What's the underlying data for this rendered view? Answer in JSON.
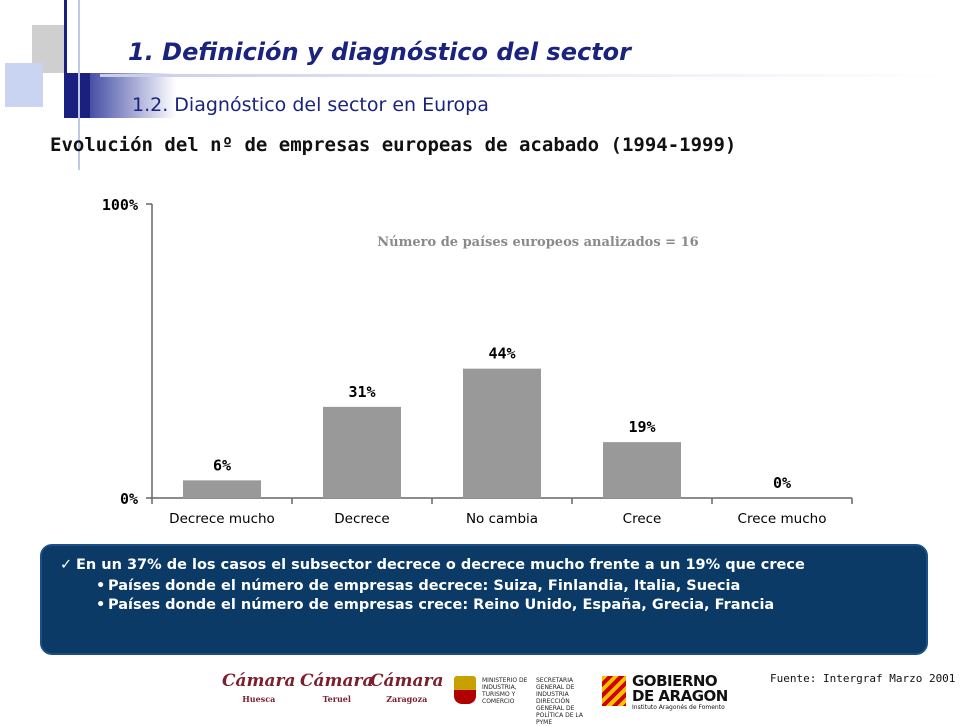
{
  "header": {
    "title": "1.  Definición y diagnóstico del sector",
    "subtitle": "1.2. Diagnóstico del sector en Europa",
    "chart_heading": "Evolución del nº de empresas europeas de acabado (1994-1999)"
  },
  "chart_data": {
    "type": "bar",
    "title": "Evolución del nº de empresas europeas de acabado (1994-1999)",
    "annotation": "Número de países europeos analizados = 16",
    "categories": [
      "Decrece mucho",
      "Decrece",
      "No cambia",
      "Crece",
      "Crece mucho"
    ],
    "values": [
      6,
      31,
      44,
      19,
      0
    ],
    "value_labels": [
      "6%",
      "31%",
      "44%",
      "19%",
      "0%"
    ],
    "ytick_labels": [
      "0%",
      "100%"
    ],
    "ylim": [
      0,
      100
    ],
    "xlabel": "",
    "ylabel": "",
    "grid": false,
    "bar_color": "#999999"
  },
  "callout": {
    "main": "En un 37% de los casos el subsector decrece o decrece mucho frente a un 19% que crece",
    "bullets": [
      "Países donde el número de empresas decrece: Suiza, Finlandia, Italia, Suecia",
      "Países donde el número de empresas crece: Reino Unido, España, Grecia, Francia"
    ],
    "background_color": "#0b3a66"
  },
  "footer": {
    "source": "Fuente: Intergraf  Marzo 2001",
    "logos": [
      {
        "name": "Cámara",
        "sub": "Huesca"
      },
      {
        "name": "Cámara",
        "sub": "Teruel"
      },
      {
        "name": "Cámara",
        "sub": "Zaragoza"
      },
      {
        "name": "MINISTERIO DE INDUSTRIA, TURISMO Y COMERCIO",
        "sub": "SECRETARIA GENERAL DE INDUSTRIA DIRECCIÓN GENERAL DE POLÍTICA DE LA PYME"
      },
      {
        "name": "GOBIERNO DE ARAGON",
        "sub": "Instituto Aragonés de Fomento"
      }
    ]
  },
  "colors": {
    "title": "#1a237e",
    "accent_navy": "#1a2080"
  }
}
